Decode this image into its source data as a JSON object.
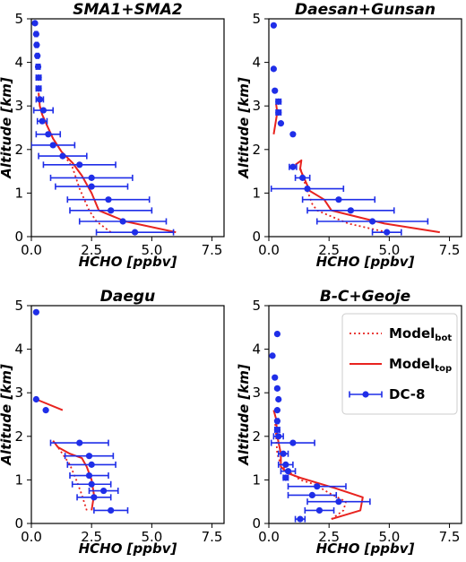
{
  "colors": {
    "model": "#e8231f",
    "dc8": "#1f2ee8"
  },
  "legend": {
    "position": "upper right of bottom-right panel",
    "entries": [
      {
        "base": "Model",
        "sub": "bot",
        "style": "dotted"
      },
      {
        "base": "Model",
        "sub": "top",
        "style": "solid"
      },
      {
        "base": "DC-8",
        "sub": "",
        "style": "markers"
      }
    ]
  },
  "chart_data": [
    {
      "type": "line",
      "title": "SMA1+SMA2",
      "xlabel": "HCHO [ppbv]",
      "ylabel": "Altitude [km]",
      "xlim": [
        0,
        8
      ],
      "ylim": [
        0,
        5
      ],
      "xticks": [
        "0.0",
        "2.5",
        "5.0",
        "7.5"
      ],
      "yticks": [
        "0",
        "1",
        "2",
        "3",
        "4",
        "5"
      ],
      "series": [
        {
          "name": "Model_bot",
          "style": "dotted",
          "points": [
            [
              3.3,
              0.1
            ],
            [
              2.7,
              0.35
            ],
            [
              2.4,
              0.6
            ],
            [
              2.0,
              1.1
            ],
            [
              1.7,
              1.6
            ],
            [
              1.25,
              1.95
            ],
            [
              0.9,
              2.25
            ],
            [
              0.65,
              2.55
            ],
            [
              0.45,
              2.8
            ]
          ]
        },
        {
          "name": "Model_top",
          "style": "solid",
          "points": [
            [
              6.0,
              0.1
            ],
            [
              3.9,
              0.35
            ],
            [
              2.8,
              0.6
            ],
            [
              2.5,
              1.0
            ],
            [
              2.1,
              1.4
            ],
            [
              1.7,
              1.7
            ],
            [
              1.25,
              1.95
            ],
            [
              0.9,
              2.25
            ],
            [
              0.65,
              2.55
            ],
            [
              0.45,
              2.8
            ],
            [
              0.35,
              3.0
            ],
            [
              0.3,
              3.3
            ]
          ]
        },
        {
          "name": "DC-8",
          "style": "markers",
          "points": [
            {
              "x": 4.3,
              "y": 0.1,
              "xerr": 1.6
            },
            {
              "x": 3.8,
              "y": 0.35,
              "xerr": 1.8
            },
            {
              "x": 3.3,
              "y": 0.6,
              "xerr": 1.7
            },
            {
              "x": 3.2,
              "y": 0.85,
              "xerr": 1.7
            },
            {
              "x": 2.5,
              "y": 1.15,
              "xerr": 1.5
            },
            {
              "x": 2.5,
              "y": 1.35,
              "xerr": 1.7
            },
            {
              "x": 2.0,
              "y": 1.65,
              "xerr": 1.5
            },
            {
              "x": 1.3,
              "y": 1.85,
              "xerr": 1.0
            },
            {
              "x": 0.9,
              "y": 2.1,
              "xerr": 0.9
            },
            {
              "x": 0.7,
              "y": 2.35,
              "xerr": 0.5
            },
            {
              "x": 0.45,
              "y": 2.65,
              "xerr": 0.2
            },
            {
              "x": 0.5,
              "y": 2.9,
              "xerr": 0.4
            },
            {
              "x": 0.35,
              "y": 3.15,
              "xerr": 0.15
            },
            {
              "x": 0.3,
              "y": 3.4,
              "xerr": 0.1
            },
            {
              "x": 0.3,
              "y": 3.65,
              "xerr": 0.1
            },
            {
              "x": 0.28,
              "y": 3.9,
              "xerr": 0.08
            },
            {
              "x": 0.25,
              "y": 4.15,
              "xerr": 0.05
            },
            {
              "x": 0.22,
              "y": 4.4,
              "xerr": 0.05
            },
            {
              "x": 0.2,
              "y": 4.65,
              "xerr": 0.05
            },
            {
              "x": 0.15,
              "y": 4.9,
              "xerr": 0.0
            }
          ]
        }
      ]
    },
    {
      "type": "line",
      "title": "Daesan+Gunsan",
      "xlabel": "HCHO [ppbv]",
      "ylabel": "Altitude [km]",
      "xlim": [
        0,
        8
      ],
      "ylim": [
        0,
        5
      ],
      "xticks": [
        "0.0",
        "2.5",
        "5.0",
        "7.5"
      ],
      "yticks": [
        "0",
        "1",
        "2",
        "3",
        "4",
        "5"
      ],
      "series": [
        {
          "name": "Model_bot",
          "style": "dotted",
          "points": [
            [
              4.9,
              0.1
            ],
            [
              3.3,
              0.3
            ],
            [
              2.0,
              0.6
            ],
            [
              1.8,
              0.75
            ],
            [
              1.6,
              1.05
            ],
            [
              1.45,
              1.3
            ],
            [
              1.3,
              1.6
            ]
          ]
        },
        {
          "name": "Model_top",
          "style": "solid",
          "points": [
            [
              7.1,
              0.1
            ],
            [
              4.8,
              0.3
            ],
            [
              2.6,
              0.6
            ],
            [
              2.3,
              0.85
            ],
            [
              1.7,
              1.05
            ],
            [
              1.5,
              1.3
            ],
            [
              1.3,
              1.55
            ],
            [
              1.35,
              1.75
            ],
            [
              1.1,
              1.65
            ]
          ]
        },
        {
          "name": "Model_top",
          "style": "solid",
          "points": [
            [
              0.2,
              2.35
            ],
            [
              0.35,
              2.85
            ],
            [
              0.3,
              3.05
            ]
          ]
        },
        {
          "name": "DC-8",
          "style": "markers",
          "points": [
            {
              "x": 4.9,
              "y": 0.1,
              "xerr": 0.6
            },
            {
              "x": 4.3,
              "y": 0.35,
              "xerr": 2.3
            },
            {
              "x": 3.4,
              "y": 0.6,
              "xerr": 1.8
            },
            {
              "x": 2.9,
              "y": 0.85,
              "xerr": 1.5
            },
            {
              "x": 1.6,
              "y": 1.1,
              "xerr": 1.5
            },
            {
              "x": 1.4,
              "y": 1.35,
              "xerr": 0.3
            },
            {
              "x": 1.0,
              "y": 1.6,
              "xerr": 0.15
            },
            {
              "x": 1.0,
              "y": 2.35,
              "xerr": 0.0
            },
            {
              "x": 0.5,
              "y": 2.6,
              "xerr": 0.0
            },
            {
              "x": 0.4,
              "y": 2.85,
              "xerr": 0.1
            },
            {
              "x": 0.4,
              "y": 3.1,
              "xerr": 0.1
            },
            {
              "x": 0.25,
              "y": 3.35,
              "xerr": 0.0
            },
            {
              "x": 0.2,
              "y": 3.85,
              "xerr": 0.0
            },
            {
              "x": 0.2,
              "y": 4.85,
              "xerr": 0.0
            }
          ]
        }
      ]
    },
    {
      "type": "line",
      "title": "Daegu",
      "xlabel": "HCHO [ppbv]",
      "ylabel": "Altitude [km]",
      "xlim": [
        0,
        8
      ],
      "ylim": [
        0,
        5
      ],
      "xticks": [
        "0.0",
        "2.5",
        "5.0",
        "7.5"
      ],
      "yticks": [
        "0",
        "1",
        "2",
        "3",
        "4",
        "5"
      ],
      "series": [
        {
          "name": "Model_bot",
          "style": "dotted",
          "points": [
            [
              2.3,
              0.3
            ],
            [
              2.1,
              0.65
            ],
            [
              1.9,
              0.95
            ],
            [
              1.6,
              1.35
            ],
            [
              1.1,
              1.75
            ]
          ]
        },
        {
          "name": "Model_top",
          "style": "solid",
          "points": [
            [
              2.5,
              0.3
            ],
            [
              2.6,
              0.65
            ],
            [
              2.5,
              1.0
            ],
            [
              2.3,
              1.3
            ],
            [
              2.1,
              1.5
            ],
            [
              1.6,
              1.6
            ],
            [
              1.1,
              1.75
            ],
            [
              0.9,
              1.9
            ]
          ]
        },
        {
          "name": "Model_top",
          "style": "solid",
          "points": [
            [
              0.2,
              2.85
            ],
            [
              1.3,
              2.6
            ]
          ]
        },
        {
          "name": "DC-8",
          "style": "markers",
          "points": [
            {
              "x": 3.3,
              "y": 0.3,
              "xerr": 0.7
            },
            {
              "x": 2.6,
              "y": 0.6,
              "xerr": 0.7
            },
            {
              "x": 3.0,
              "y": 0.75,
              "xerr": 0.6
            },
            {
              "x": 2.5,
              "y": 0.9,
              "xerr": 0.8
            },
            {
              "x": 2.4,
              "y": 1.1,
              "xerr": 0.8
            },
            {
              "x": 2.5,
              "y": 1.35,
              "xerr": 1.0
            },
            {
              "x": 2.4,
              "y": 1.55,
              "xerr": 1.0
            },
            {
              "x": 2.0,
              "y": 1.85,
              "xerr": 1.2
            },
            {
              "x": 0.6,
              "y": 2.6,
              "xerr": 0.0
            },
            {
              "x": 0.2,
              "y": 2.85,
              "xerr": 0.0
            },
            {
              "x": 0.2,
              "y": 4.85,
              "xerr": 0.0
            }
          ]
        }
      ]
    },
    {
      "type": "line",
      "title": "B-C+Geoje",
      "xlabel": "HCHO [ppbv]",
      "ylabel": "Altitude [km]",
      "xlim": [
        0,
        8
      ],
      "ylim": [
        0,
        5
      ],
      "xticks": [
        "0.0",
        "2.5",
        "5.0",
        "7.5"
      ],
      "yticks": [
        "0",
        "1",
        "2",
        "3",
        "4",
        "5"
      ],
      "series": [
        {
          "name": "Model_bot",
          "style": "dotted",
          "points": [
            [
              2.6,
              0.1
            ],
            [
              3.1,
              0.3
            ],
            [
              3.2,
              0.5
            ],
            [
              2.5,
              0.7
            ],
            [
              1.9,
              0.9
            ],
            [
              1.3,
              1.0
            ],
            [
              0.8,
              1.2
            ],
            [
              0.5,
              1.35
            ],
            [
              0.35,
              1.6
            ],
            [
              0.3,
              2.0
            ],
            [
              0.25,
              2.4
            ]
          ]
        },
        {
          "name": "Model_top",
          "style": "solid",
          "points": [
            [
              2.6,
              0.1
            ],
            [
              3.8,
              0.3
            ],
            [
              3.9,
              0.6
            ],
            [
              2.8,
              0.8
            ],
            [
              1.9,
              0.95
            ],
            [
              1.3,
              1.05
            ],
            [
              0.8,
              1.15
            ],
            [
              0.5,
              1.3
            ],
            [
              0.5,
              1.6
            ],
            [
              0.35,
              2.0
            ],
            [
              0.3,
              2.4
            ],
            [
              0.2,
              2.6
            ]
          ]
        },
        {
          "name": "DC-8",
          "style": "markers",
          "points": [
            {
              "x": 1.3,
              "y": 0.1,
              "xerr": 0.2
            },
            {
              "x": 2.1,
              "y": 0.3,
              "xerr": 0.6
            },
            {
              "x": 2.9,
              "y": 0.5,
              "xerr": 1.3
            },
            {
              "x": 1.8,
              "y": 0.65,
              "xerr": 1.0
            },
            {
              "x": 2.0,
              "y": 0.85,
              "xerr": 1.2
            },
            {
              "x": 0.7,
              "y": 1.05,
              "xerr": 0.1
            },
            {
              "x": 0.8,
              "y": 1.2,
              "xerr": 0.3
            },
            {
              "x": 0.7,
              "y": 1.35,
              "xerr": 0.3
            },
            {
              "x": 0.6,
              "y": 1.6,
              "xerr": 0.2
            },
            {
              "x": 1.0,
              "y": 1.85,
              "xerr": 0.9
            },
            {
              "x": 0.4,
              "y": 2.0,
              "xerr": 0.2
            },
            {
              "x": 0.35,
              "y": 2.15,
              "xerr": 0.1
            },
            {
              "x": 0.35,
              "y": 2.35,
              "xerr": 0.05
            },
            {
              "x": 0.35,
              "y": 2.6,
              "xerr": 0.0
            },
            {
              "x": 0.4,
              "y": 2.85,
              "xerr": 0.0
            },
            {
              "x": 0.35,
              "y": 3.1,
              "xerr": 0.0
            },
            {
              "x": 0.25,
              "y": 3.35,
              "xerr": 0.0
            },
            {
              "x": 0.15,
              "y": 3.85,
              "xerr": 0.0
            },
            {
              "x": 0.35,
              "y": 4.35,
              "xerr": 0.0
            }
          ]
        }
      ]
    }
  ]
}
